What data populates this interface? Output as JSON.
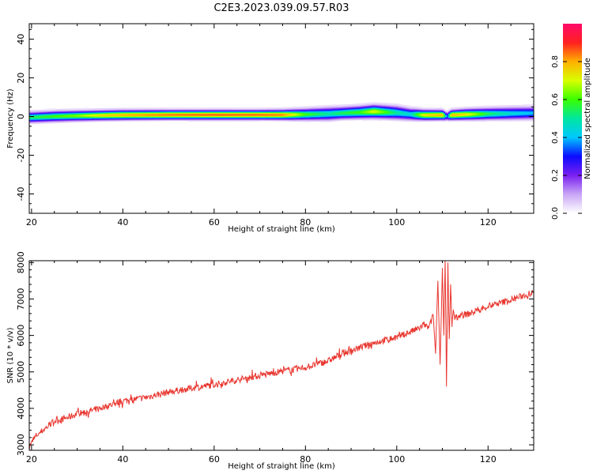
{
  "title": "C2E3.2023.039.09.57.R03",
  "chart_data": [
    {
      "type": "heatmap",
      "xlabel": "Height of straight line (km)",
      "ylabel": "Frequency (Hz)",
      "xlim": [
        19.5,
        130
      ],
      "ylim": [
        -50,
        48
      ],
      "xticks": [
        20,
        40,
        60,
        80,
        100,
        120
      ],
      "yticks": [
        -40,
        -20,
        0,
        20,
        40
      ],
      "colorbar": {
        "label": "Normalized spectral amplitude",
        "range": [
          0,
          1
        ],
        "ticks": [
          0.0,
          0.2,
          0.4,
          0.6,
          0.8
        ],
        "tick_labels": [
          "0.0",
          "0.2",
          "0.4",
          "0.6",
          "0.8"
        ],
        "colormap": [
          "#ffffff",
          "#c9a6f5",
          "#7a1ff0",
          "#0b0bff",
          "#00c8ff",
          "#00e6a0",
          "#39ff00",
          "#d8ff00",
          "#ffb000",
          "#ff2020",
          "#ff0a6a"
        ]
      },
      "ridge": {
        "x": [
          20,
          25,
          30,
          35,
          40,
          50,
          60,
          70,
          75,
          80,
          85,
          88,
          92,
          95,
          100,
          103,
          106,
          110,
          111,
          112,
          115,
          120,
          125,
          130
        ],
        "center_freq": [
          0,
          0.5,
          0.8,
          1.0,
          1.2,
          1.3,
          1.3,
          1.3,
          1.3,
          1.5,
          1.8,
          2.2,
          2.6,
          3.0,
          2.4,
          1.6,
          1.2,
          1.2,
          0.5,
          1.2,
          1.5,
          1.8,
          2.0,
          2.2
        ],
        "peak_amplitude": [
          0.55,
          0.6,
          0.65,
          0.75,
          0.8,
          0.85,
          0.87,
          0.86,
          0.84,
          0.6,
          0.5,
          0.55,
          0.6,
          0.72,
          0.5,
          0.45,
          0.75,
          0.8,
          0.3,
          0.8,
          0.75,
          0.55,
          0.45,
          0.4
        ],
        "half_width": [
          2.6,
          2.6,
          2.5,
          2.4,
          2.4,
          2.3,
          2.3,
          2.3,
          2.4,
          2.8,
          3.2,
          3.0,
          3.1,
          3.2,
          3.3,
          3.0,
          2.5,
          2.4,
          2.2,
          2.4,
          2.6,
          2.9,
          3.1,
          3.2
        ]
      }
    },
    {
      "type": "line",
      "xlabel": "Height of straight line (km)",
      "ylabel": "SNR (10 * v/v)",
      "xlim": [
        19.5,
        130
      ],
      "ylim": [
        2850,
        8050
      ],
      "xticks": [
        20,
        40,
        60,
        80,
        100,
        120
      ],
      "yticks": [
        3000,
        4000,
        5000,
        6000,
        7000,
        8000
      ],
      "color": "#e8352e",
      "series": [
        {
          "x": [
            19.5,
            21,
            23,
            25,
            28,
            30,
            35,
            40,
            45,
            50,
            55,
            60,
            65,
            70,
            75,
            80,
            85,
            88,
            90,
            95,
            100,
            103,
            105,
            106,
            107,
            108,
            108.5,
            109,
            109.5,
            110,
            110.3,
            110.6,
            110.9,
            111.2,
            111.5,
            111.8,
            112.1,
            112.4,
            112.7,
            113,
            114,
            116,
            118,
            120,
            123,
            125,
            128,
            130
          ],
          "values": [
            2950,
            3250,
            3450,
            3650,
            3750,
            3850,
            4000,
            4200,
            4300,
            4450,
            4550,
            4650,
            4780,
            4900,
            5020,
            5120,
            5300,
            5500,
            5580,
            5800,
            5950,
            6100,
            6200,
            6300,
            6200,
            6550,
            5500,
            7500,
            5200,
            7850,
            6000,
            8050,
            4600,
            8000,
            5900,
            7400,
            6300,
            6700,
            6450,
            6500,
            6550,
            6600,
            6700,
            6800,
            6900,
            6980,
            7100,
            7180
          ]
        }
      ]
    }
  ]
}
